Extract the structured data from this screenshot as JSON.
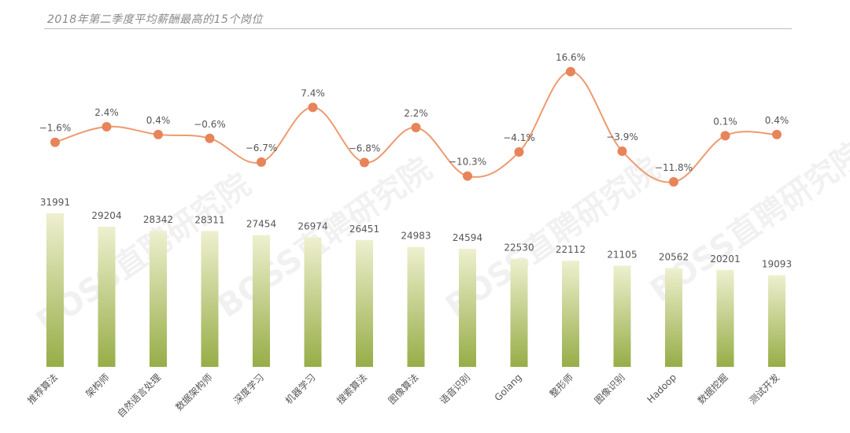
{
  "title": "2018年第二季度平均薪酬最高的15个岗位",
  "watermark": "BOSS直聘研究院",
  "colors": {
    "bar_top": "#eef0cf",
    "bar_bottom": "#97ad47",
    "line": "#ee9a6e",
    "marker": "#e7845a"
  },
  "chart_data": [
    {
      "type": "bar",
      "categories": [
        "推荐算法",
        "架构师",
        "自然语言处理",
        "数据架构师",
        "深度学习",
        "机器学习",
        "搜索算法",
        "图像算法",
        "语音识别",
        "Golang",
        "整形师",
        "图像识别",
        "Hadoop",
        "数据挖掘",
        "测试开发"
      ],
      "values": [
        31991,
        29204,
        28342,
        28311,
        27454,
        26974,
        26451,
        24983,
        24594,
        22530,
        22112,
        21105,
        20562,
        20201,
        19093
      ],
      "value_labels": [
        "31991",
        "29204",
        "28342",
        "28311",
        "27454",
        "26974",
        "26451",
        "24983",
        "24594",
        "22530",
        "22112",
        "21105",
        "20562",
        "20201",
        "19093"
      ],
      "ylim": [
        0,
        35000
      ],
      "grid": false
    },
    {
      "type": "line",
      "categories": [
        "推荐算法",
        "架构师",
        "自然语言处理",
        "数据架构师",
        "深度学习",
        "机器学习",
        "搜索算法",
        "图像算法",
        "语音识别",
        "Golang",
        "整形师",
        "图像识别",
        "Hadoop",
        "数据挖掘",
        "测试开发"
      ],
      "values": [
        -1.6,
        2.4,
        0.4,
        -0.6,
        -6.7,
        7.4,
        -6.8,
        2.2,
        -10.3,
        -4.1,
        16.6,
        -3.9,
        -11.8,
        0.1,
        0.4
      ],
      "value_labels": [
        "−1.6%",
        "2.4%",
        "0.4%",
        "−0.6%",
        "−6.7%",
        "7.4%",
        "−6.8%",
        "2.2%",
        "−10.3%",
        "−4.1%",
        "16.6%",
        "−3.9%",
        "−11.8%",
        "0.1%",
        "0.4%"
      ],
      "ylim": [
        -12,
        17
      ],
      "grid": false
    }
  ]
}
